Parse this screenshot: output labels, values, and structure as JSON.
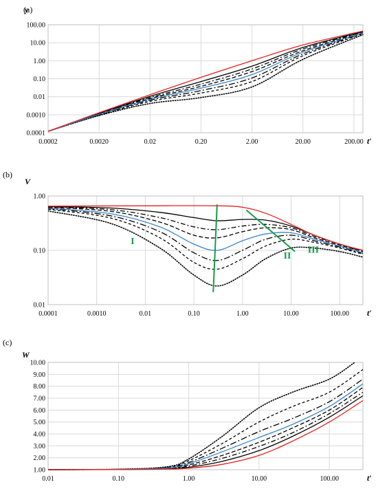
{
  "chart_data": [
    {
      "panel_label": "(a)",
      "type": "line",
      "ylabel": "y",
      "xlabel": "t′",
      "xscale": "log",
      "yscale": "log",
      "xlim": [
        0.0002,
        300
      ],
      "ylim": [
        0.0001,
        100
      ],
      "x_ticks": [
        "0.0002",
        "0.0020",
        "0.02",
        "0.20",
        "2.00",
        "20.00",
        "200.00"
      ],
      "y_ticks": [
        "0.0001",
        "0.0010",
        "0.01",
        "0.10",
        "1.00",
        "10.00",
        "100.00"
      ],
      "grid": true,
      "series": [
        {
          "style": "red-solid",
          "color": "#e8201c",
          "points": [
            [
              0.0002,
              0.00012
            ],
            [
              0.002,
              0.0013
            ],
            [
              0.02,
              0.013
            ],
            [
              0.2,
              0.12
            ],
            [
              2,
              1.0
            ],
            [
              20,
              7.5
            ],
            [
              300,
              45
            ]
          ]
        },
        {
          "style": "black-solid",
          "color": "#000000",
          "points": [
            [
              0.0002,
              0.00012
            ],
            [
              0.002,
              0.0012
            ],
            [
              0.02,
              0.0105
            ],
            [
              0.2,
              0.07
            ],
            [
              2,
              0.5
            ],
            [
              20,
              5.5
            ],
            [
              300,
              42
            ]
          ]
        },
        {
          "style": "black-dashdot",
          "color": "#000000",
          "points": [
            [
              0.0002,
              0.00012
            ],
            [
              0.002,
              0.00115
            ],
            [
              0.02,
              0.009
            ],
            [
              0.2,
              0.05
            ],
            [
              2,
              0.35
            ],
            [
              20,
              4.5
            ],
            [
              300,
              40
            ]
          ]
        },
        {
          "style": "black-dashed",
          "color": "#000000",
          "points": [
            [
              0.0002,
              0.00012
            ],
            [
              0.002,
              0.0011
            ],
            [
              0.02,
              0.008
            ],
            [
              0.2,
              0.038
            ],
            [
              2,
              0.25
            ],
            [
              20,
              3.6
            ],
            [
              300,
              38
            ]
          ]
        },
        {
          "style": "blue-solid",
          "color": "#3a86c8",
          "points": [
            [
              0.0002,
              0.00012
            ],
            [
              0.002,
              0.00105
            ],
            [
              0.02,
              0.0072
            ],
            [
              0.2,
              0.03
            ],
            [
              2,
              0.17
            ],
            [
              20,
              3.0
            ],
            [
              300,
              36
            ]
          ]
        },
        {
          "style": "black-dashdot-2",
          "color": "#000000",
          "points": [
            [
              0.0002,
              0.00012
            ],
            [
              0.002,
              0.001
            ],
            [
              0.02,
              0.0064
            ],
            [
              0.2,
              0.022
            ],
            [
              2,
              0.11
            ],
            [
              20,
              2.4
            ],
            [
              300,
              34
            ]
          ]
        },
        {
          "style": "black-dashed-2",
          "color": "#000000",
          "points": [
            [
              0.0002,
              0.00012
            ],
            [
              0.002,
              0.00095
            ],
            [
              0.02,
              0.0055
            ],
            [
              0.2,
              0.016
            ],
            [
              2,
              0.07
            ],
            [
              20,
              1.9
            ],
            [
              300,
              32
            ]
          ]
        },
        {
          "style": "black-dotted",
          "color": "#000000",
          "points": [
            [
              0.0002,
              0.00012
            ],
            [
              0.002,
              0.0009
            ],
            [
              0.02,
              0.0042
            ],
            [
              0.2,
              0.009
            ],
            [
              2,
              0.035
            ],
            [
              20,
              1.2
            ],
            [
              300,
              28
            ]
          ]
        }
      ]
    },
    {
      "panel_label": "(b)",
      "type": "line",
      "ylabel": "V",
      "xlabel": "t′",
      "xscale": "log",
      "yscale": "log",
      "xlim": [
        0.0001,
        300
      ],
      "ylim": [
        0.01,
        1
      ],
      "x_ticks": [
        "0.0001",
        "0.0010",
        "0.01",
        "0.10",
        "1.00",
        "10.00",
        "100.00"
      ],
      "y_ticks": [
        "0.01",
        "0.10",
        "1.00"
      ],
      "grid": true,
      "annotations": [
        "I",
        "II",
        "III"
      ],
      "series": [
        {
          "style": "red-solid",
          "color": "#e8201c",
          "points": [
            [
              0.0001,
              0.65
            ],
            [
              0.01,
              0.66
            ],
            [
              0.3,
              0.66
            ],
            [
              1,
              0.62
            ],
            [
              3,
              0.48
            ],
            [
              10,
              0.3
            ],
            [
              30,
              0.19
            ],
            [
              100,
              0.13
            ],
            [
              300,
              0.1
            ]
          ]
        },
        {
          "style": "black-solid",
          "color": "#000000",
          "points": [
            [
              0.0001,
              0.64
            ],
            [
              0.002,
              0.6
            ],
            [
              0.02,
              0.5
            ],
            [
              0.1,
              0.4
            ],
            [
              0.3,
              0.35
            ],
            [
              1,
              0.37
            ],
            [
              3,
              0.36
            ],
            [
              10,
              0.28
            ],
            [
              30,
              0.19
            ],
            [
              100,
              0.13
            ],
            [
              300,
              0.1
            ]
          ]
        },
        {
          "style": "black-dashdot",
          "color": "#000000",
          "points": [
            [
              0.0001,
              0.63
            ],
            [
              0.002,
              0.56
            ],
            [
              0.02,
              0.4
            ],
            [
              0.1,
              0.27
            ],
            [
              0.3,
              0.24
            ],
            [
              1,
              0.28
            ],
            [
              3,
              0.3
            ],
            [
              10,
              0.26
            ],
            [
              30,
              0.18
            ],
            [
              100,
              0.13
            ],
            [
              300,
              0.095
            ]
          ]
        },
        {
          "style": "black-dashed",
          "color": "#000000",
          "points": [
            [
              0.0001,
              0.62
            ],
            [
              0.002,
              0.52
            ],
            [
              0.02,
              0.33
            ],
            [
              0.1,
              0.19
            ],
            [
              0.3,
              0.17
            ],
            [
              1,
              0.22
            ],
            [
              3,
              0.26
            ],
            [
              10,
              0.24
            ],
            [
              30,
              0.17
            ],
            [
              100,
              0.125
            ],
            [
              300,
              0.095
            ]
          ]
        },
        {
          "style": "blue-solid",
          "color": "#3a86c8",
          "points": [
            [
              0.0001,
              0.6
            ],
            [
              0.002,
              0.47
            ],
            [
              0.02,
              0.27
            ],
            [
              0.1,
              0.13
            ],
            [
              0.3,
              0.1
            ],
            [
              1,
              0.15
            ],
            [
              3,
              0.2
            ],
            [
              10,
              0.21
            ],
            [
              30,
              0.16
            ],
            [
              100,
              0.12
            ],
            [
              300,
              0.09
            ]
          ]
        },
        {
          "style": "black-dashdot-2",
          "color": "#000000",
          "points": [
            [
              0.0001,
              0.59
            ],
            [
              0.002,
              0.43
            ],
            [
              0.02,
              0.22
            ],
            [
              0.1,
              0.09
            ],
            [
              0.3,
              0.065
            ],
            [
              1,
              0.1
            ],
            [
              3,
              0.16
            ],
            [
              10,
              0.19
            ],
            [
              30,
              0.15
            ],
            [
              100,
              0.115
            ],
            [
              300,
              0.088
            ]
          ]
        },
        {
          "style": "black-dashed-2",
          "color": "#000000",
          "points": [
            [
              0.0001,
              0.57
            ],
            [
              0.002,
              0.39
            ],
            [
              0.02,
              0.17
            ],
            [
              0.1,
              0.06
            ],
            [
              0.3,
              0.045
            ],
            [
              1,
              0.07
            ],
            [
              3,
              0.12
            ],
            [
              10,
              0.16
            ],
            [
              30,
              0.14
            ],
            [
              100,
              0.11
            ],
            [
              300,
              0.085
            ]
          ]
        },
        {
          "style": "black-dotted",
          "color": "#000000",
          "points": [
            [
              0.0001,
              0.53
            ],
            [
              0.002,
              0.31
            ],
            [
              0.02,
              0.11
            ],
            [
              0.1,
              0.035
            ],
            [
              0.3,
              0.022
            ],
            [
              1,
              0.035
            ],
            [
              3,
              0.07
            ],
            [
              10,
              0.11
            ],
            [
              30,
              0.11
            ],
            [
              100,
              0.095
            ],
            [
              300,
              0.075
            ]
          ]
        }
      ],
      "guide_lines": [
        {
          "label": "I",
          "from": [
            0.3,
            0.7
          ],
          "to": [
            0.25,
            0.017
          ]
        },
        {
          "label": "II",
          "from": [
            1.2,
            0.55
          ],
          "to": [
            12,
            0.095
          ]
        }
      ]
    },
    {
      "panel_label": "(c)",
      "type": "line",
      "ylabel": "W",
      "xlabel": "t′",
      "xscale": "log",
      "yscale": "linear",
      "xlim": [
        0.01,
        300
      ],
      "ylim": [
        1,
        10
      ],
      "x_ticks": [
        "0.01",
        "0.10",
        "1.00",
        "10.00",
        "100.00"
      ],
      "y_ticks": [
        "1.00",
        "2.00",
        "3.00",
        "4.00",
        "5.00",
        "6.00",
        "7.00",
        "8.00",
        "9.00",
        "10.00"
      ],
      "grid": true,
      "series": [
        {
          "style": "red-solid",
          "color": "#e8201c",
          "points": [
            [
              0.01,
              1.0
            ],
            [
              0.1,
              1.01
            ],
            [
              0.5,
              1.05
            ],
            [
              1,
              1.12
            ],
            [
              3,
              1.45
            ],
            [
              10,
              2.2
            ],
            [
              30,
              3.4
            ],
            [
              100,
              5.0
            ],
            [
              300,
              6.8
            ]
          ]
        },
        {
          "style": "black-solid",
          "color": "#000000",
          "points": [
            [
              0.01,
              1.0
            ],
            [
              0.1,
              1.02
            ],
            [
              0.5,
              1.08
            ],
            [
              1,
              1.2
            ],
            [
              3,
              1.7
            ],
            [
              10,
              2.6
            ],
            [
              30,
              3.8
            ],
            [
              100,
              5.4
            ],
            [
              300,
              7.2
            ]
          ]
        },
        {
          "style": "black-dashdot",
          "color": "#000000",
          "points": [
            [
              0.01,
              1.0
            ],
            [
              0.1,
              1.02
            ],
            [
              0.5,
              1.1
            ],
            [
              1,
              1.3
            ],
            [
              3,
              1.95
            ],
            [
              10,
              2.95
            ],
            [
              30,
              4.1
            ],
            [
              100,
              5.7
            ],
            [
              300,
              7.5
            ]
          ]
        },
        {
          "style": "black-dashed",
          "color": "#000000",
          "points": [
            [
              0.01,
              1.0
            ],
            [
              0.1,
              1.03
            ],
            [
              0.5,
              1.12
            ],
            [
              1,
              1.4
            ],
            [
              3,
              2.2
            ],
            [
              10,
              3.3
            ],
            [
              30,
              4.5
            ],
            [
              100,
              6.0
            ],
            [
              300,
              7.9
            ]
          ]
        },
        {
          "style": "blue-solid",
          "color": "#3a86c8",
          "points": [
            [
              0.01,
              1.0
            ],
            [
              0.1,
              1.03
            ],
            [
              0.5,
              1.14
            ],
            [
              1,
              1.5
            ],
            [
              3,
              2.5
            ],
            [
              10,
              3.7
            ],
            [
              30,
              4.8
            ],
            [
              100,
              6.3
            ],
            [
              300,
              8.2
            ]
          ]
        },
        {
          "style": "black-dashdot-2",
          "color": "#000000",
          "points": [
            [
              0.01,
              1.0
            ],
            [
              0.1,
              1.03
            ],
            [
              0.5,
              1.17
            ],
            [
              1,
              1.6
            ],
            [
              3,
              2.8
            ],
            [
              10,
              4.2
            ],
            [
              30,
              5.3
            ],
            [
              100,
              6.7
            ],
            [
              300,
              8.6
            ]
          ]
        },
        {
          "style": "black-dashed-2",
          "color": "#000000",
          "points": [
            [
              0.01,
              1.0
            ],
            [
              0.1,
              1.03
            ],
            [
              0.5,
              1.2
            ],
            [
              1,
              1.75
            ],
            [
              3,
              3.2
            ],
            [
              10,
              5.0
            ],
            [
              30,
              6.3
            ],
            [
              100,
              7.5
            ],
            [
              300,
              9.4
            ]
          ]
        },
        {
          "style": "black-dotted",
          "color": "#000000",
          "points": [
            [
              0.01,
              1.0
            ],
            [
              0.1,
              1.04
            ],
            [
              0.5,
              1.25
            ],
            [
              1,
              1.9
            ],
            [
              3,
              3.8
            ],
            [
              10,
              6.2
            ],
            [
              30,
              7.5
            ],
            [
              100,
              8.6
            ],
            [
              230,
              10.0
            ]
          ]
        }
      ]
    }
  ]
}
